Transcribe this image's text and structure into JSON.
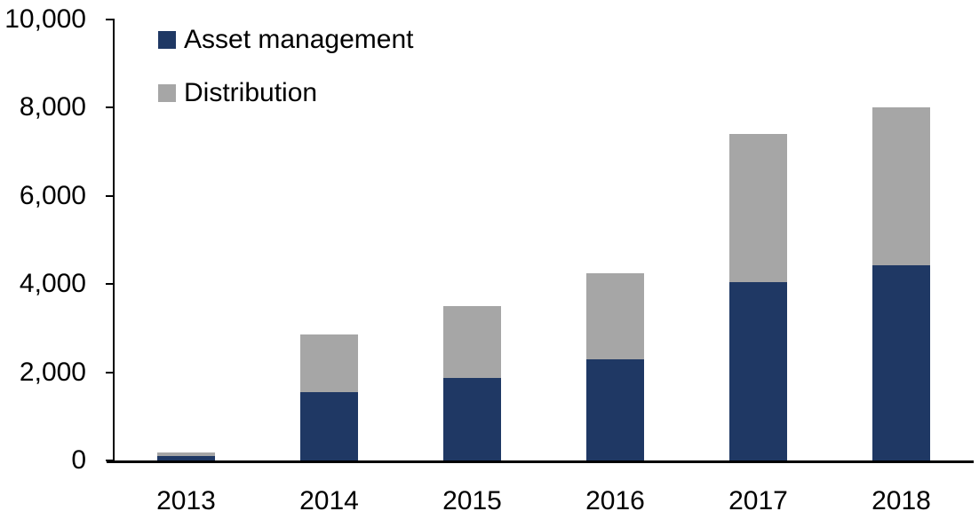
{
  "chart_data": {
    "type": "bar",
    "stacked": true,
    "title": "",
    "xlabel": "",
    "ylabel": "",
    "categories": [
      "2013",
      "2014",
      "2015",
      "2016",
      "2017",
      "2018"
    ],
    "series": [
      {
        "name": "Asset management",
        "color": "#1F3864",
        "values": [
          100,
          1550,
          1870,
          2290,
          4040,
          4420
        ]
      },
      {
        "name": "Distribution",
        "color": "#A6A6A6",
        "values": [
          80,
          1310,
          1630,
          1950,
          3360,
          3580
        ]
      }
    ],
    "totals": [
      180,
      2860,
      3500,
      4240,
      7400,
      8000
    ],
    "ylim": [
      0,
      10000
    ],
    "yticks": [
      0,
      2000,
      4000,
      6000,
      8000,
      10000
    ],
    "ytick_labels": [
      "0",
      "2,000",
      "4,000",
      "6,000",
      "8,000",
      "10,000"
    ],
    "grid": false,
    "legend_position": "top-left"
  },
  "colors": {
    "axis": "#000000",
    "text": "#000000",
    "background": "#FFFFFF"
  }
}
